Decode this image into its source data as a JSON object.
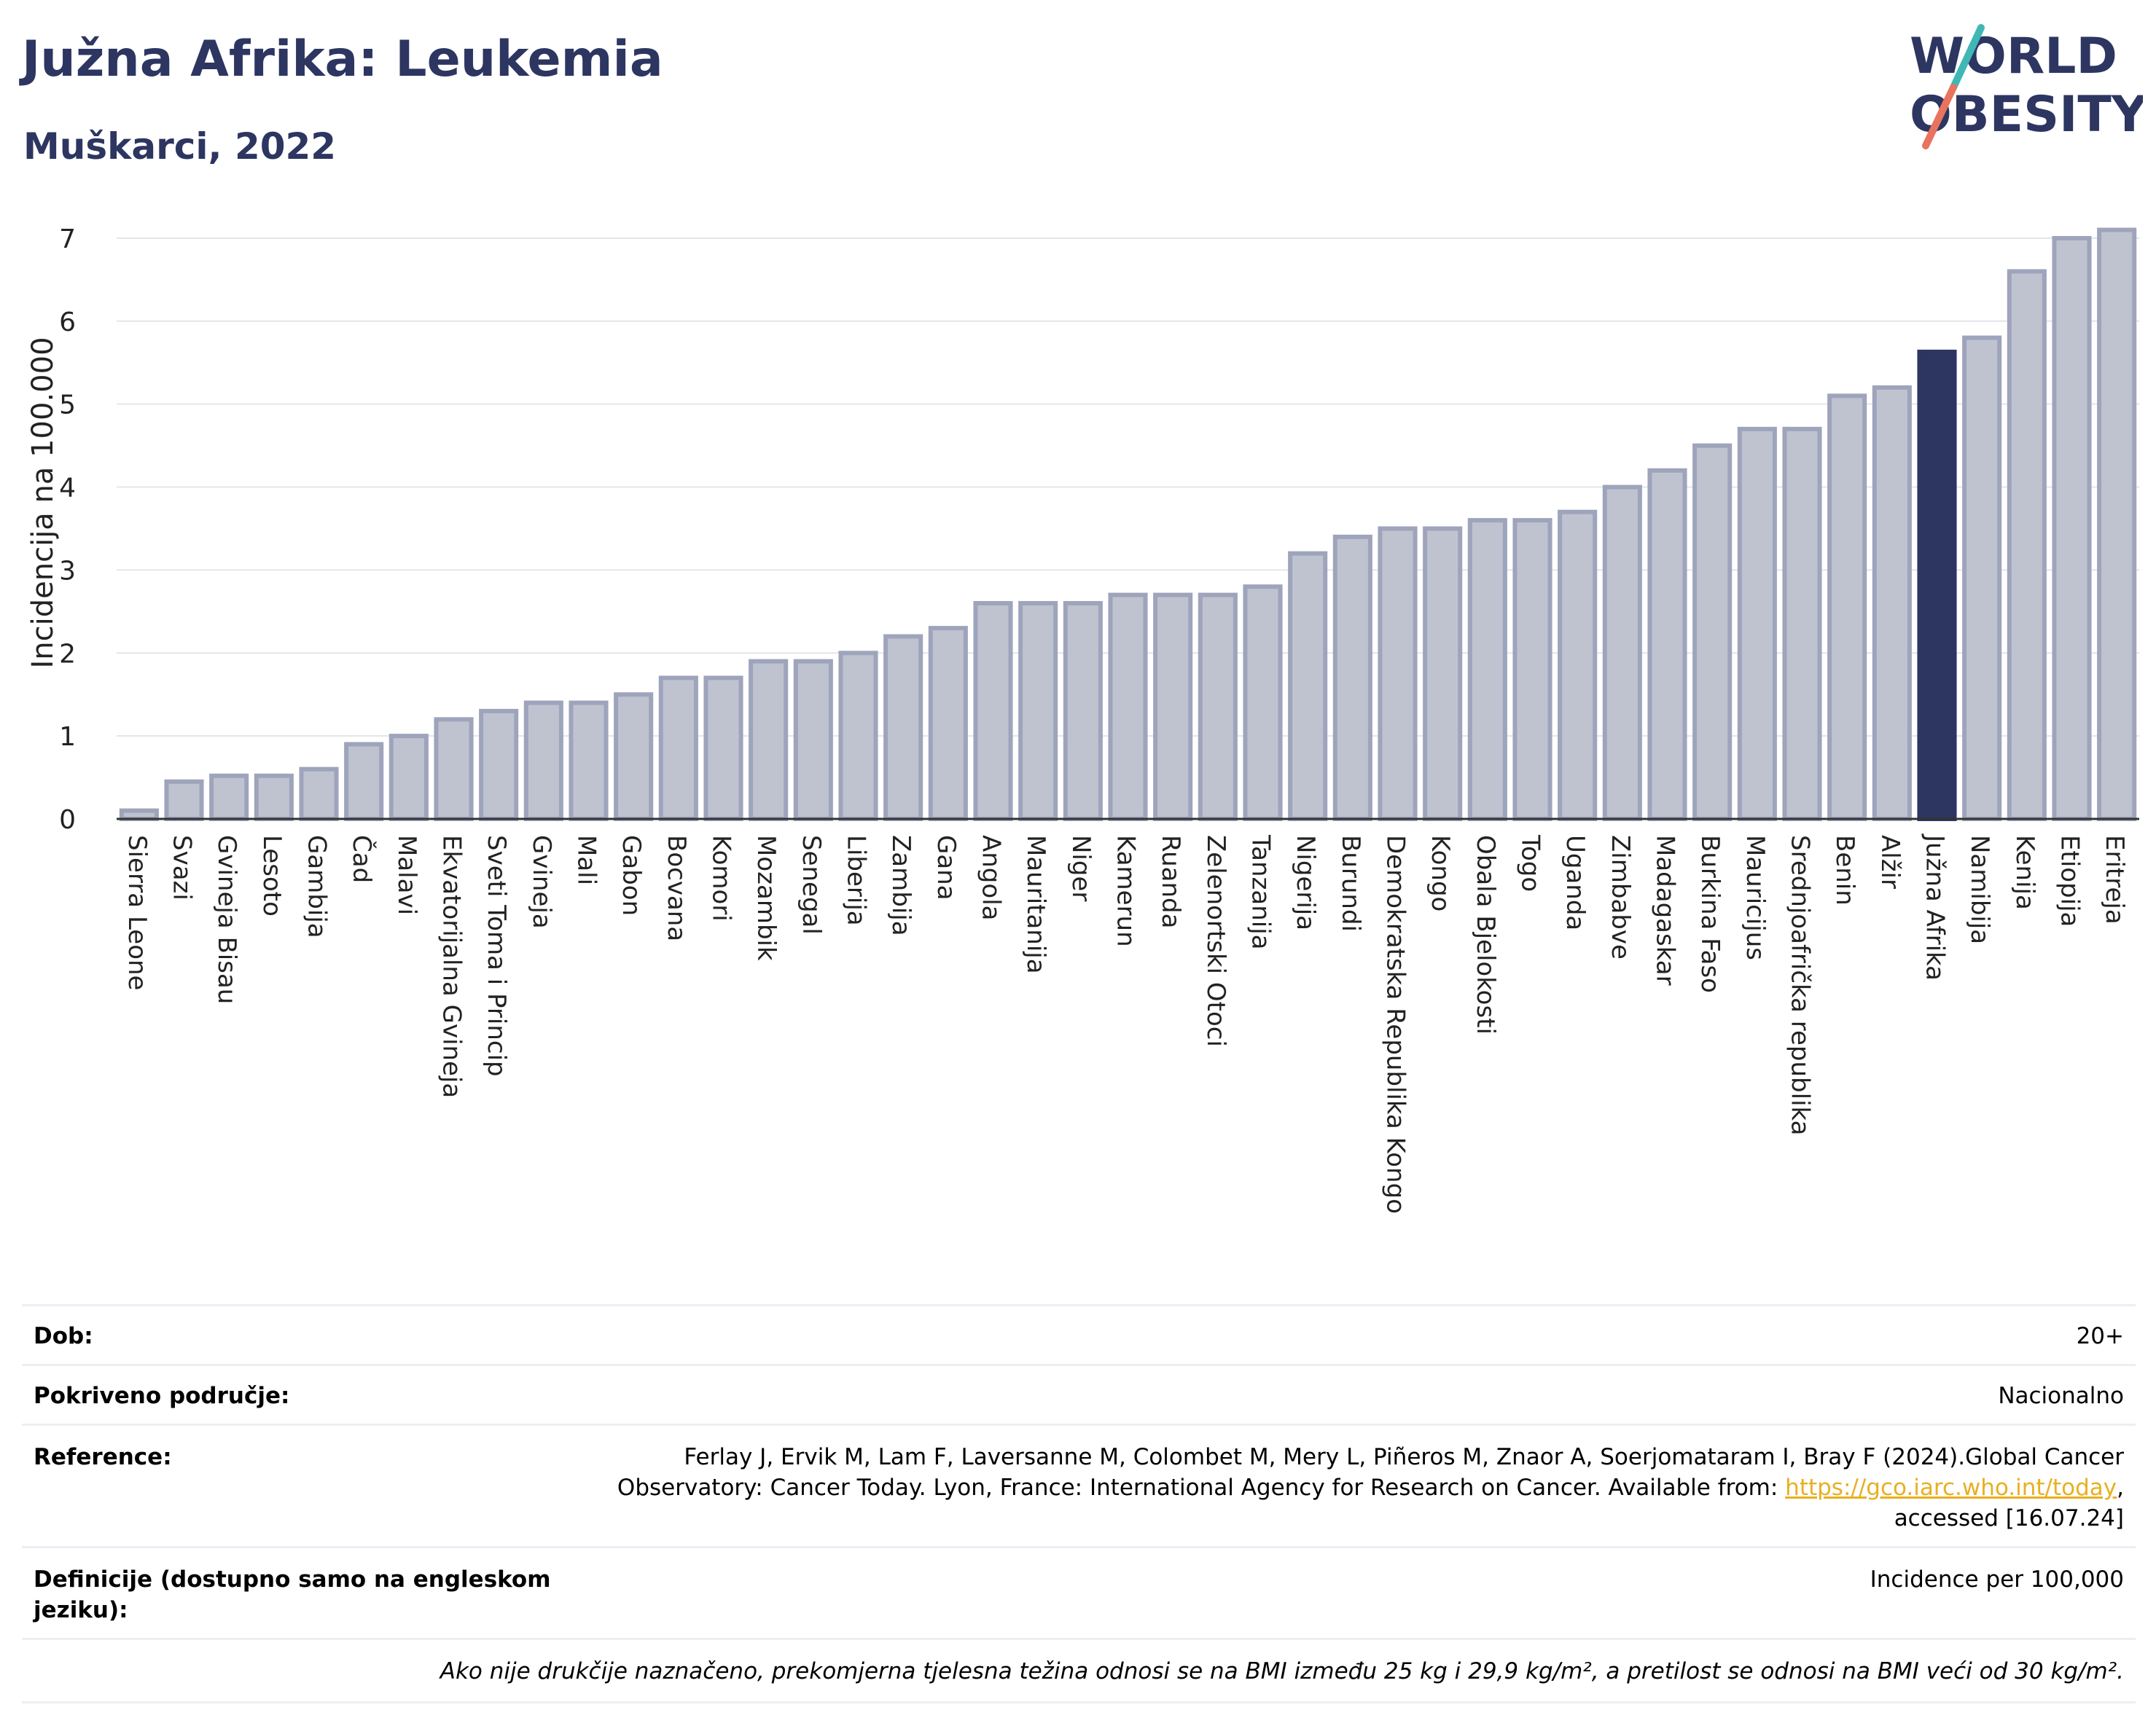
{
  "header": {
    "title": "Južna Afrika: Leukemia",
    "subtitle": "Muškarci, 2022",
    "logo_line1": "WORLD",
    "logo_line2": "OBESITY"
  },
  "chart_data": {
    "type": "bar",
    "ylabel": "Incidencija na 100.000",
    "ylim": [
      0,
      7.5
    ],
    "yticks": [
      0,
      1,
      2,
      3,
      4,
      5,
      6,
      7
    ],
    "grid": true,
    "highlight": "Južna Afrika",
    "colors": {
      "bar": "#bfc3d0",
      "bar_edge": "#9ea4bb",
      "highlight": "#2d3561",
      "grid": "#e3e5ea"
    },
    "categories": [
      "Sierra Leone",
      "Svazi",
      "Gvineja Bisau",
      "Lesoto",
      "Gambija",
      "Čad",
      "Malavi",
      "Ekvatorijalna Gvineja",
      "Sveti Toma i Princip",
      "Gvineja",
      "Mali",
      "Gabon",
      "Bocvana",
      "Komori",
      "Mozambik",
      "Senegal",
      "Liberija",
      "Zambija",
      "Gana",
      "Angola",
      "Mauritanija",
      "Niger",
      "Kamerun",
      "Ruanda",
      "Zelenortski Otoci",
      "Tanzanija",
      "Nigerija",
      "Burundi",
      "Demokratska Republika Kongo",
      "Kongo",
      "Obala Bjelokosti",
      "Togo",
      "Uganda",
      "Zimbabve",
      "Madagaskar",
      "Burkina Faso",
      "Mauricijus",
      "Srednjoafrička republika",
      "Benin",
      "Alžir",
      "Južna Afrika",
      "Namibija",
      "Kenija",
      "Etiopija",
      "Eritreja"
    ],
    "values": [
      0.1,
      0.45,
      0.52,
      0.52,
      0.6,
      0.9,
      1.0,
      1.2,
      1.3,
      1.4,
      1.4,
      1.5,
      1.7,
      1.7,
      1.9,
      1.9,
      2.0,
      2.2,
      2.3,
      2.6,
      2.6,
      2.6,
      2.7,
      2.7,
      2.7,
      2.8,
      3.2,
      3.4,
      3.5,
      3.5,
      3.6,
      3.6,
      3.7,
      4.0,
      4.2,
      4.5,
      4.7,
      4.7,
      5.1,
      5.2,
      5.63,
      5.8,
      6.6,
      7.0,
      7.1
    ]
  },
  "info": {
    "dob_label": "Dob:",
    "dob_value": "20+",
    "coverage_label": "Pokriveno područje:",
    "coverage_value": "Nacionalno",
    "reference_label": "Reference:",
    "reference_line1": "Ferlay J, Ervik M, Lam F, Laversanne M, Colombet M, Mery L, Piñeros M, Znaor A, Soerjomataram I, Bray F (2024).Global Cancer",
    "reference_line2": "Observatory: Cancer Today. Lyon, France: International Agency for Research on Cancer. Available from: ",
    "reference_link": "https://gco.iarc.who.int/today",
    "reference_line2_end": ",",
    "reference_line3": "accessed [16.07.24]",
    "definitions_label": "Definicije (dostupno samo na engleskom jeziku):",
    "definitions_value": "Incidence per 100,000",
    "note": "Ako nije drukčije naznačeno, prekomjerna tjelesna težina odnosi se na BMI između 25 kg i 29,9 kg/m², a pretilost se odnosi na BMI veći od 30 kg/m²."
  }
}
